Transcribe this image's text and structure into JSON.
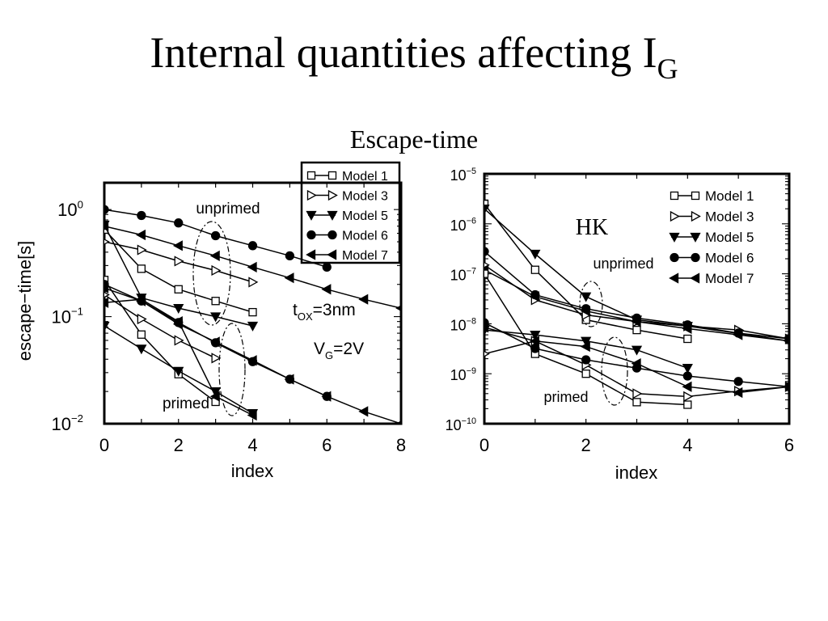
{
  "page": {
    "title_main": "Internal quantities affecting I",
    "title_sub": "G",
    "subtitle": "Escape-time"
  },
  "chart_data": [
    {
      "type": "line",
      "title": "",
      "xlabel": "index",
      "ylabel": "escape−time[s]",
      "yscale": "log",
      "xlim": [
        0,
        8
      ],
      "ylim": [
        0.01,
        1.78
      ],
      "xticks": [
        "0",
        "2",
        "4",
        "6",
        "8"
      ],
      "yticks": [
        {
          "base": "10",
          "exp": "0",
          "value": 1
        },
        {
          "base": "10",
          "exp": "−1",
          "value": 0.1
        },
        {
          "base": "10",
          "exp": "−2",
          "value": 0.01
        }
      ],
      "legend_position": "top-right",
      "legend": [
        "Model 1",
        "Model 3",
        "Model 5",
        "Model 6",
        "Model 7"
      ],
      "annotations": {
        "unprimed": "unprimed",
        "primed": "primed",
        "tox_t": "t",
        "tox_sub": "OX",
        "tox_rest": "=3nm",
        "vg_v": "V",
        "vg_sub": "G",
        "vg_rest": "=2V"
      },
      "series": [
        {
          "name": "Model 1",
          "marker": "square",
          "x": [
            0,
            1,
            2,
            3,
            4
          ],
          "y": [
            0.65,
            0.28,
            0.18,
            0.14,
            0.11
          ]
        },
        {
          "name": "Model 3",
          "marker": "triangle-right",
          "x": [
            0,
            1,
            2,
            3,
            4
          ],
          "y": [
            0.5,
            0.42,
            0.33,
            0.27,
            0.21
          ]
        },
        {
          "name": "Model 5",
          "marker": "triangle-down",
          "x": [
            0,
            1,
            2,
            3,
            4
          ],
          "y": [
            0.72,
            0.15,
            0.12,
            0.1,
            0.082
          ]
        },
        {
          "name": "Model 6",
          "marker": "circle",
          "x": [
            0,
            1,
            2,
            3,
            4,
            5,
            6
          ],
          "y": [
            1.0,
            0.88,
            0.75,
            0.57,
            0.46,
            0.37,
            0.29
          ]
        },
        {
          "name": "Model 7",
          "marker": "triangle-left",
          "x": [
            0,
            1,
            2,
            3,
            4,
            5,
            6,
            7,
            8
          ],
          "y": [
            0.7,
            0.58,
            0.46,
            0.37,
            0.29,
            0.23,
            0.18,
            0.145,
            0.12
          ]
        },
        {
          "name": "Model 1",
          "group": "primed",
          "marker": "square",
          "x": [
            0,
            1,
            2,
            3
          ],
          "y": [
            0.22,
            0.068,
            0.029,
            0.016
          ]
        },
        {
          "name": "Model 3",
          "group": "primed",
          "marker": "triangle-right",
          "x": [
            0,
            1,
            2,
            3
          ],
          "y": [
            0.16,
            0.095,
            0.06,
            0.041
          ]
        },
        {
          "name": "Model 5",
          "group": "primed",
          "marker": "triangle-down",
          "x": [
            0,
            1,
            2,
            3,
            4
          ],
          "y": [
            0.082,
            0.05,
            0.031,
            0.02,
            0.0125
          ]
        },
        {
          "name": "Model 6",
          "group": "primed",
          "marker": "circle",
          "x": [
            0,
            1,
            2,
            3,
            4,
            5,
            6
          ],
          "y": [
            0.2,
            0.14,
            0.088,
            0.057,
            0.038,
            0.026,
            0.018
          ]
        },
        {
          "name": "Model 7",
          "group": "primed",
          "marker": "triangle-left",
          "x": [
            0,
            1,
            2,
            3,
            4,
            5,
            6,
            7,
            8
          ],
          "y": [
            0.185,
            0.14,
            0.085,
            0.058,
            0.039,
            0.026,
            0.018,
            0.013,
            0.01
          ]
        },
        {
          "name": "Model 7",
          "group": "primed",
          "marker": "triangle-left",
          "x": [
            0,
            1,
            2,
            3,
            4
          ],
          "y": [
            0.135,
            0.145,
            0.09,
            0.018,
            0.012
          ]
        }
      ]
    },
    {
      "type": "line",
      "title": "HK",
      "xlabel": "index",
      "ylabel": "",
      "yscale": "log",
      "xlim": [
        0,
        6
      ],
      "ylim": [
        1e-10,
        1e-05
      ],
      "xticks": [
        "0",
        "2",
        "4",
        "6"
      ],
      "yticks": [
        {
          "base": "10",
          "exp": "−5",
          "value": 1e-05
        },
        {
          "base": "10",
          "exp": "−6",
          "value": 1e-06
        },
        {
          "base": "10",
          "exp": "−7",
          "value": 1e-07
        },
        {
          "base": "10",
          "exp": "−8",
          "value": 1e-08
        },
        {
          "base": "10",
          "exp": "−9",
          "value": 1e-09
        },
        {
          "base": "10",
          "exp": "−10",
          "value": 1e-10
        }
      ],
      "legend_position": "top-right",
      "legend": [
        "Model 1",
        "Model 3",
        "Model 5",
        "Model 6",
        "Model 7"
      ],
      "annotations": {
        "unprimed": "unprimed",
        "primed": "primed"
      },
      "series": [
        {
          "name": "Model 1",
          "marker": "square",
          "x": [
            0,
            1,
            2,
            3,
            4
          ],
          "y": [
            2.5e-06,
            1.2e-07,
            1.2e-08,
            7.5e-09,
            5e-09
          ]
        },
        {
          "name": "Model 3",
          "marker": "triangle-right",
          "x": [
            0,
            1,
            2,
            3,
            4,
            5,
            6
          ],
          "y": [
            1.5e-07,
            3e-08,
            1.5e-08,
            1.1e-08,
            9e-09,
            7.5e-09,
            5e-09
          ]
        },
        {
          "name": "Model 5",
          "marker": "triangle-down",
          "x": [
            0,
            1,
            2,
            3,
            4,
            6
          ],
          "y": [
            2e-06,
            2.5e-07,
            3.5e-08,
            1.2e-08,
            9e-09,
            4.5e-09
          ]
        },
        {
          "name": "Model 6",
          "marker": "circle",
          "x": [
            0,
            1,
            2,
            3,
            4,
            5,
            6
          ],
          "y": [
            2.8e-07,
            3.8e-08,
            2e-08,
            1.3e-08,
            9.5e-09,
            6.5e-09,
            5e-09
          ]
        },
        {
          "name": "Model 7",
          "marker": "triangle-left",
          "x": [
            0,
            1,
            2,
            3,
            4,
            5,
            6
          ],
          "y": [
            1.2e-07,
            3.5e-08,
            1.8e-08,
            1.1e-08,
            8e-09,
            6e-09,
            4.5e-09
          ]
        },
        {
          "name": "Model 1",
          "group": "primed",
          "marker": "square",
          "x": [
            0,
            1,
            2,
            3,
            4
          ],
          "y": [
            1e-07,
            2.5e-09,
            1e-09,
            2.7e-10,
            2.4e-10
          ]
        },
        {
          "name": "Model 3",
          "group": "primed",
          "marker": "triangle-right",
          "x": [
            0,
            1,
            2,
            3,
            4,
            5,
            6
          ],
          "y": [
            2.5e-09,
            4.5e-09,
            1.5e-09,
            4e-10,
            3.5e-10,
            4.5e-10,
            5.5e-10
          ]
        },
        {
          "name": "Model 5",
          "group": "primed",
          "marker": "triangle-down",
          "x": [
            0,
            1,
            2,
            3,
            4
          ],
          "y": [
            7.5e-09,
            6e-09,
            4.5e-09,
            3e-09,
            1.3e-09
          ]
        },
        {
          "name": "Model 6",
          "group": "primed",
          "marker": "circle",
          "x": [
            0,
            1,
            2,
            3,
            4,
            5,
            6
          ],
          "y": [
            1.05e-08,
            3.2e-09,
            1.9e-09,
            1.3e-09,
            9e-10,
            7e-10,
            5.5e-10
          ]
        },
        {
          "name": "Model 7",
          "group": "primed",
          "marker": "triangle-left",
          "x": [
            0,
            1,
            2,
            3,
            4,
            5,
            6
          ],
          "y": [
            8.5e-09,
            4.5e-09,
            3.5e-09,
            1.6e-09,
            5.5e-10,
            4.2e-10,
            5.5e-10
          ]
        }
      ]
    }
  ]
}
